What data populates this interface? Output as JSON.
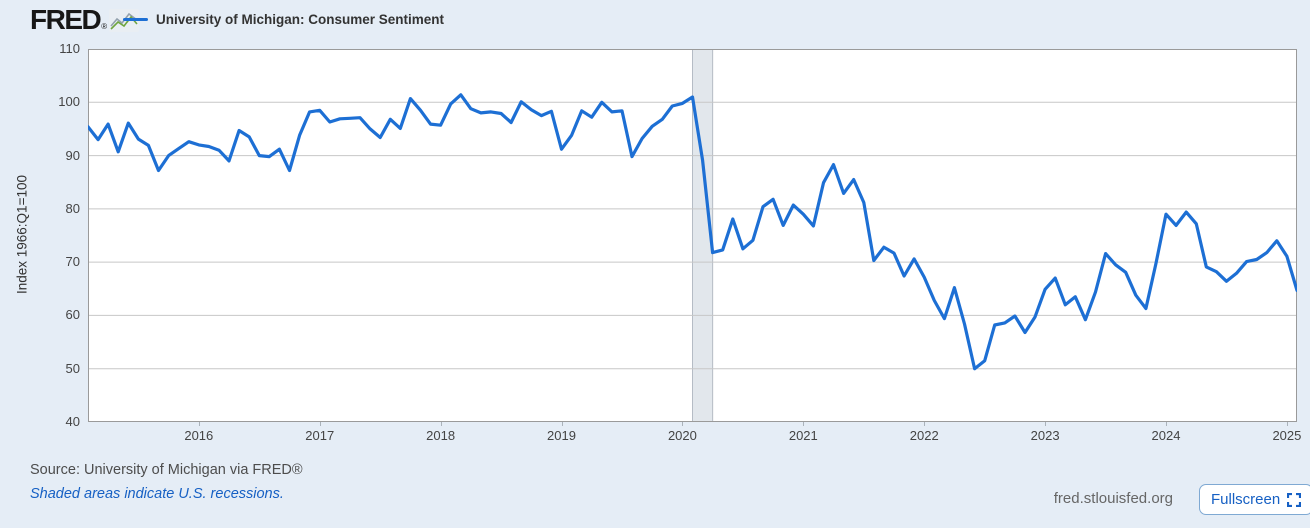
{
  "header": {
    "logo_text": "FRED",
    "logo_registered": "®",
    "legend": {
      "label": "University of Michigan: Consumer Sentiment"
    }
  },
  "chart_data": {
    "type": "line",
    "title": "University of Michigan: Consumer Sentiment",
    "ylabel": "Index 1966:Q1=100",
    "xlabel": "",
    "frequency": "monthly",
    "x_start": "2015-02",
    "x_end": "2025-02",
    "ylim": [
      40,
      110
    ],
    "grid": "horizontal",
    "legend_position": "top-left",
    "y_ticks": [
      110,
      100,
      90,
      80,
      70,
      60,
      50,
      40
    ],
    "x_ticks": [
      {
        "label": "2016",
        "index": 11
      },
      {
        "label": "2017",
        "index": 23
      },
      {
        "label": "2018",
        "index": 35
      },
      {
        "label": "2019",
        "index": 47
      },
      {
        "label": "2020",
        "index": 59
      },
      {
        "label": "2021",
        "index": 71
      },
      {
        "label": "2022",
        "index": 83
      },
      {
        "label": "2023",
        "index": 95
      },
      {
        "label": "2024",
        "index": 107
      },
      {
        "label": "2025",
        "index": 119
      }
    ],
    "recession_bands": [
      {
        "start": "2020-02",
        "end": "2020-04",
        "start_index": 60,
        "end_index": 62
      }
    ],
    "series": [
      {
        "name": "University of Michigan: Consumer Sentiment",
        "color": "#1d6fd4",
        "values": [
          95.4,
          93.0,
          95.9,
          90.7,
          96.1,
          93.1,
          91.9,
          87.2,
          90.0,
          91.3,
          92.6,
          92.0,
          91.7,
          91.0,
          89.0,
          94.7,
          93.5,
          90.0,
          89.8,
          91.2,
          87.2,
          93.8,
          98.2,
          98.5,
          96.3,
          96.9,
          97.0,
          97.1,
          95.0,
          93.4,
          96.8,
          95.1,
          100.7,
          98.5,
          95.9,
          95.7,
          99.7,
          101.4,
          98.8,
          98.0,
          98.2,
          97.9,
          96.2,
          100.1,
          98.6,
          97.5,
          98.3,
          91.2,
          93.8,
          98.4,
          97.2,
          100.0,
          98.2,
          98.4,
          89.8,
          93.2,
          95.5,
          96.8,
          99.3,
          99.8,
          101.0,
          89.1,
          71.8,
          72.3,
          78.1,
          72.5,
          74.1,
          80.4,
          81.8,
          76.9,
          80.7,
          79.0,
          76.8,
          84.9,
          88.3,
          82.9,
          85.5,
          81.2,
          70.3,
          72.8,
          71.7,
          67.4,
          70.6,
          67.2,
          62.8,
          59.4,
          65.2,
          58.4,
          50.0,
          51.5,
          58.2,
          58.6,
          59.9,
          56.8,
          59.7,
          64.9,
          67.0,
          62.0,
          63.5,
          59.2,
          64.4,
          71.6,
          69.5,
          68.1,
          63.8,
          61.3,
          69.7,
          79.0,
          76.9,
          79.4,
          77.2,
          69.1,
          68.2,
          66.4,
          67.9,
          70.1,
          70.5,
          71.8,
          74.0,
          71.1,
          64.7
        ]
      }
    ]
  },
  "footer": {
    "source": "Source: University of Michigan via FRED®",
    "recessions_note": "Shaded areas indicate U.S. recessions.",
    "site_url": "fred.stlouisfed.org",
    "fullscreen_label": "Fullscreen"
  },
  "colors": {
    "page_bg": "#e5edf6",
    "plot_bg": "#ffffff",
    "plot_border": "#9a9a9a",
    "gridline": "#c7c7c7",
    "recession_band": "#e2e7ec",
    "recession_band_edge": "#b5bcc5",
    "line": "#1d6fd4",
    "link_blue": "#1660c4"
  }
}
